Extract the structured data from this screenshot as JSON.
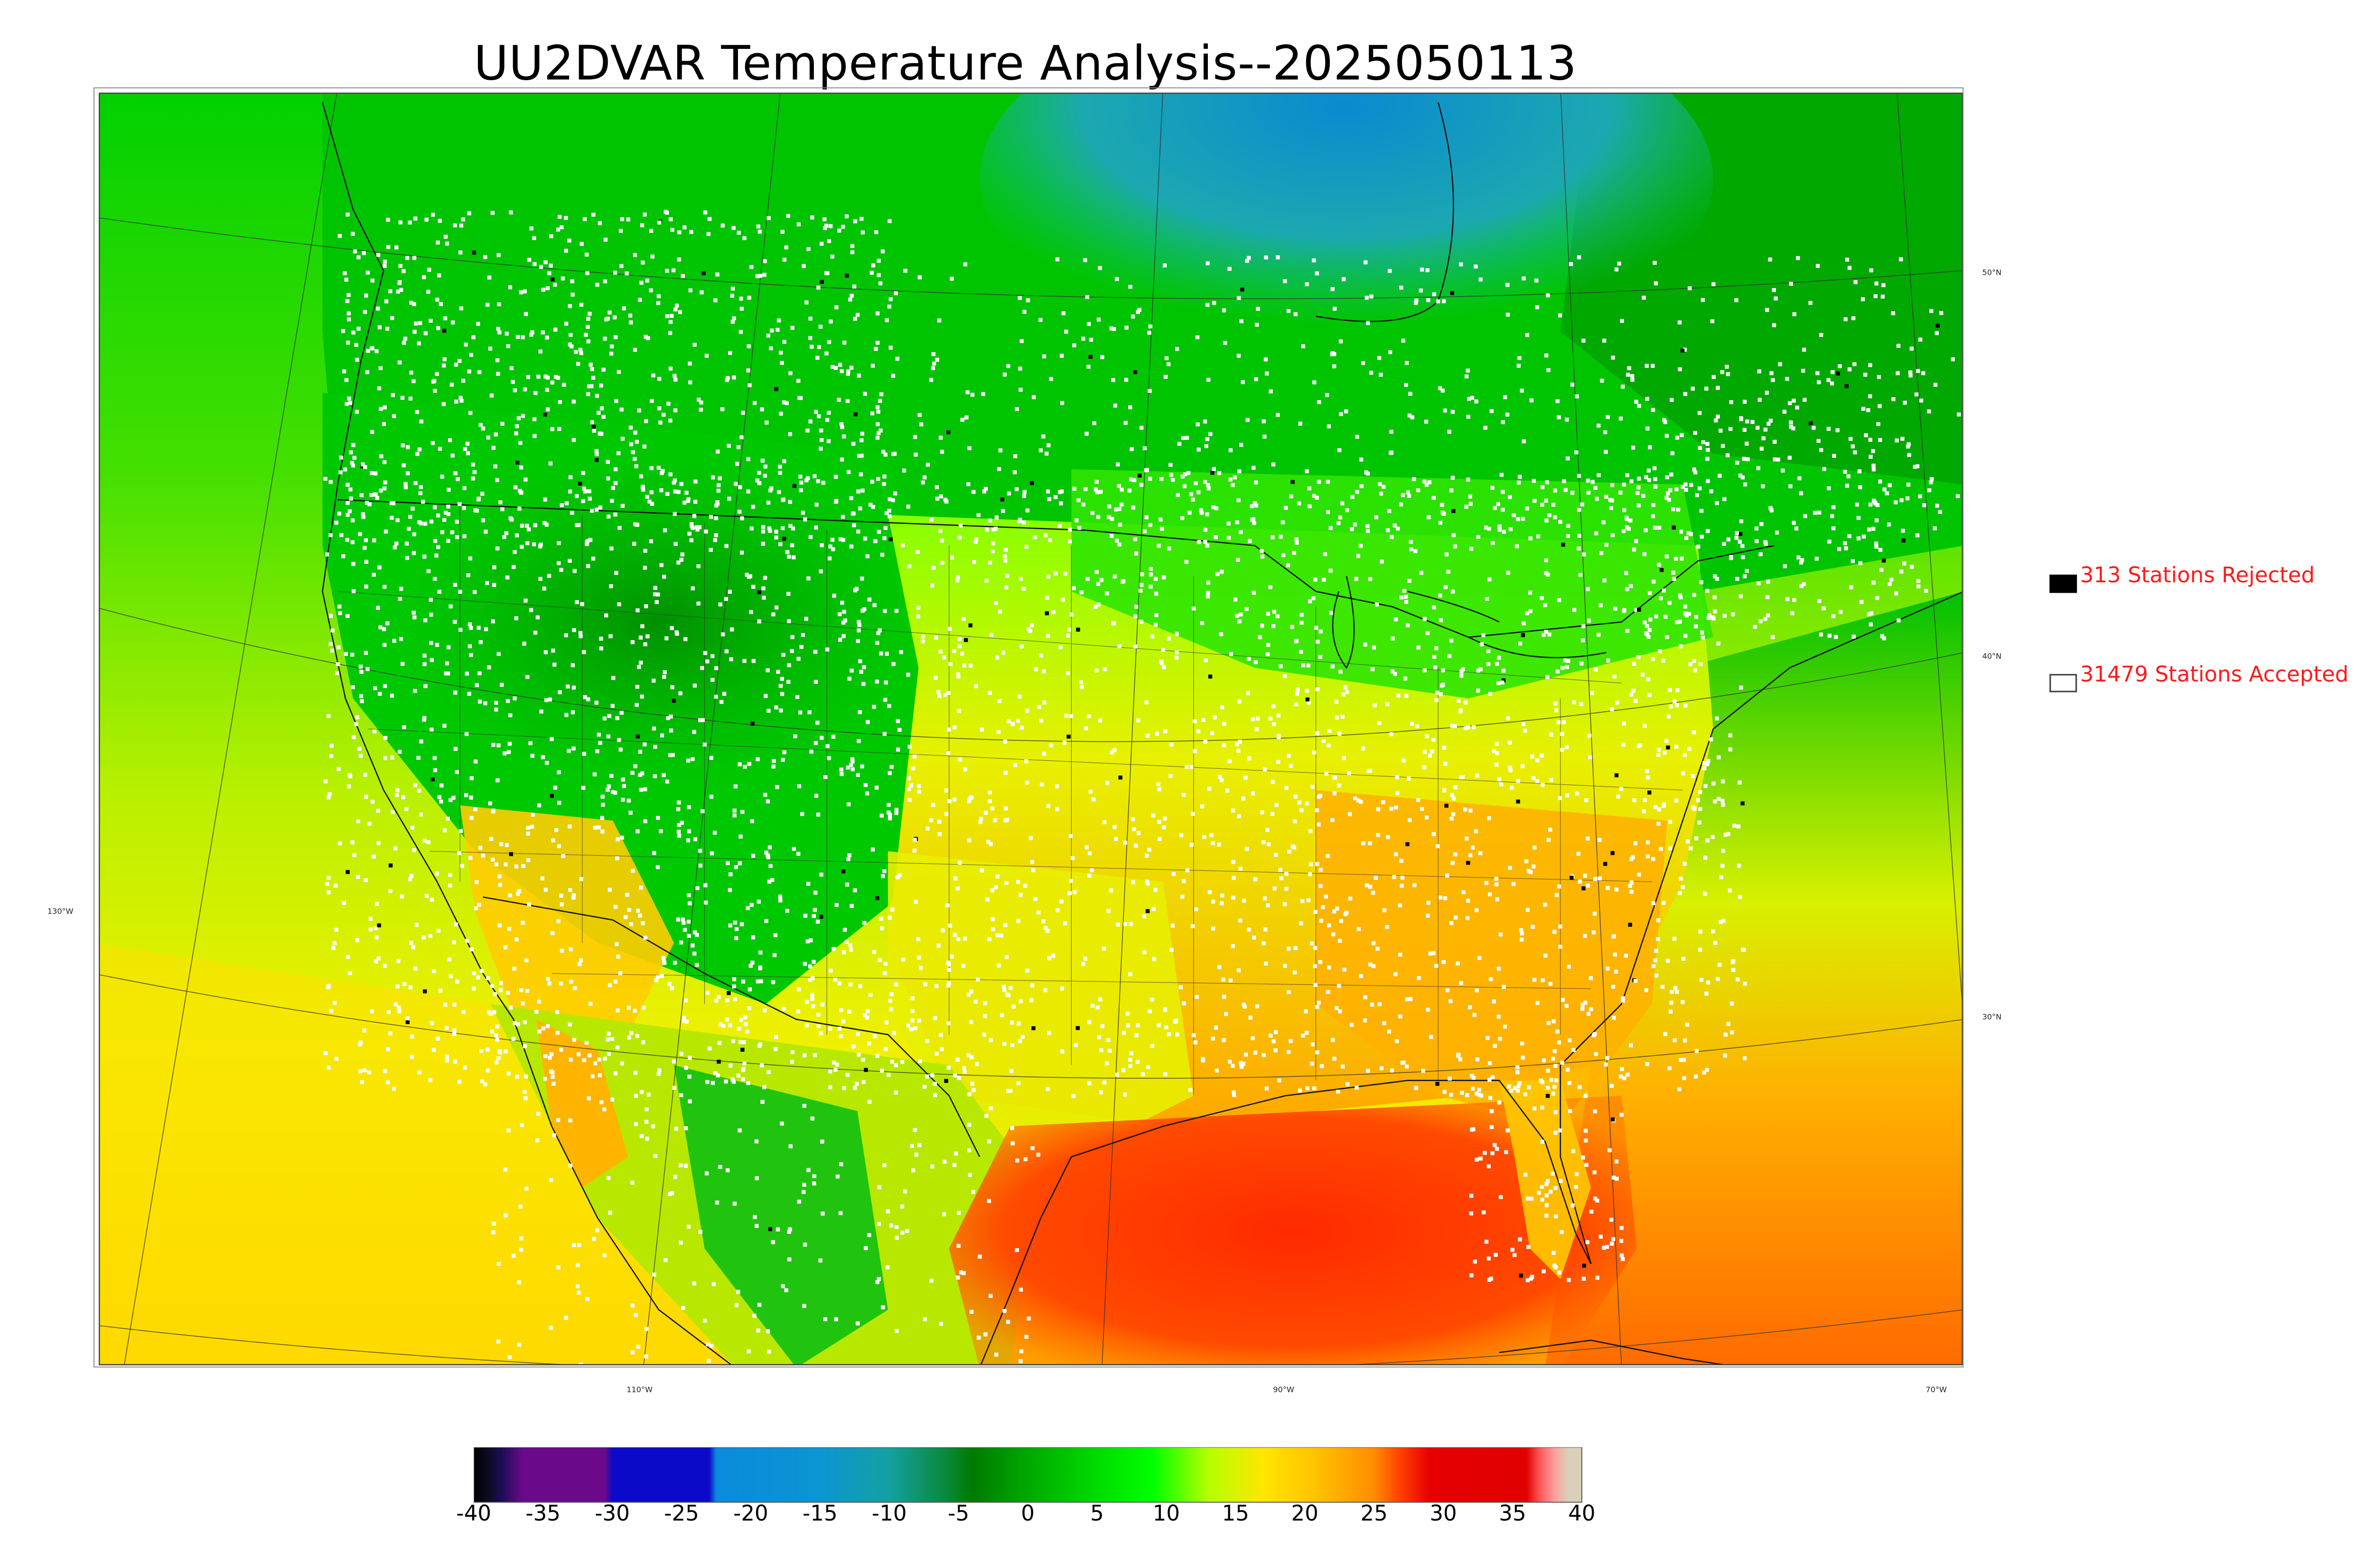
{
  "title": "UU2DVAR Temperature Analysis--2025050113",
  "legend": {
    "rejected": {
      "label": "313 Stations Rejected",
      "box_color": "#000000"
    },
    "accepted": {
      "label": "31479 Stations Accepted",
      "box_color": "#ffffff"
    },
    "text_color": "#ff1a1a"
  },
  "map": {
    "latitude_labels": [
      "50°N",
      "40°N",
      "30°N"
    ],
    "longitude_labels": [
      "130°W",
      "110°W",
      "90°W",
      "70°W"
    ]
  },
  "colorbar": {
    "ticks": [
      "-40",
      "-35",
      "-30",
      "-25",
      "-20",
      "-15",
      "-10",
      "-5",
      "0",
      "5",
      "10",
      "15",
      "20",
      "25",
      "30",
      "35",
      "40"
    ],
    "range": [
      -40,
      40
    ],
    "stops": [
      {
        "value": -40,
        "color": "#000000"
      },
      {
        "value": -39,
        "color": "#0b0b20"
      },
      {
        "value": -38,
        "color": "#1c0c55"
      },
      {
        "value": -36.5,
        "color": "#6a0a8a"
      },
      {
        "value": -30.5,
        "color": "#6a0a8a"
      },
      {
        "value": -30,
        "color": "#0a0ac8"
      },
      {
        "value": -23,
        "color": "#0a0ac8"
      },
      {
        "value": -22.5,
        "color": "#0a8adc"
      },
      {
        "value": -15,
        "color": "#0a96d2"
      },
      {
        "value": -10,
        "color": "#14a0a0"
      },
      {
        "value": -6,
        "color": "#0a8a3c"
      },
      {
        "value": -4,
        "color": "#007a00"
      },
      {
        "value": 0,
        "color": "#00a800"
      },
      {
        "value": 5,
        "color": "#00dc00"
      },
      {
        "value": 9,
        "color": "#00ff00"
      },
      {
        "value": 13,
        "color": "#b4ff00"
      },
      {
        "value": 17,
        "color": "#ffe600"
      },
      {
        "value": 21,
        "color": "#ffc000"
      },
      {
        "value": 25,
        "color": "#ff8c00"
      },
      {
        "value": 27,
        "color": "#ff3c00"
      },
      {
        "value": 29,
        "color": "#e60000"
      },
      {
        "value": 36,
        "color": "#e00000"
      },
      {
        "value": 37,
        "color": "#ff5a5a"
      },
      {
        "value": 38,
        "color": "#ff9c9c"
      },
      {
        "value": 39,
        "color": "#d8d0b8"
      },
      {
        "value": 40,
        "color": "#d8d0b8"
      }
    ]
  },
  "colors": {
    "ocean_pacific": "#ffdc00",
    "land_north": "#00c800",
    "hudson_bay": "#1aa0c8",
    "gulf": "#ff3c00",
    "atlantic": "#ffa000",
    "station_accepted": "#ffffff",
    "station_rejected": "#000000"
  }
}
